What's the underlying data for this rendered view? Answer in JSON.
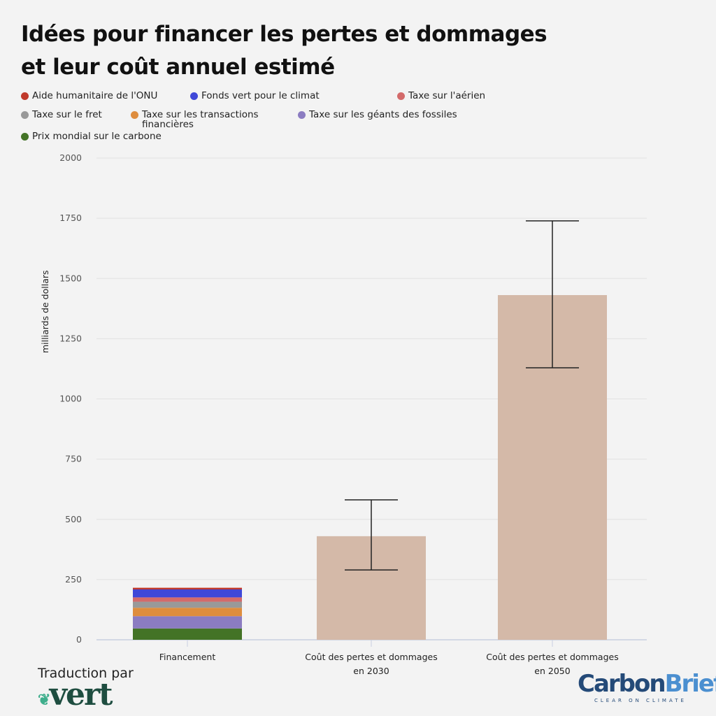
{
  "title_line1": "Idées pour financer les pertes et dommages",
  "title_line2": "et leur coût annuel estimé",
  "legend": [
    {
      "label": "Aide humanitaire de l'ONU",
      "color": "#c0392b"
    },
    {
      "label": "Fonds vert pour le climat",
      "color": "#3f48d8"
    },
    {
      "label": "Taxe sur l'aérien",
      "color": "#d36a6a"
    },
    {
      "label": "Taxe sur le fret",
      "color": "#999999"
    },
    {
      "label": "Taxe sur les transactions financières",
      "color": "#de8d3e"
    },
    {
      "label": "Taxe sur les géants des fossiles",
      "color": "#8b7cc1"
    },
    {
      "label": "Prix mondial sur le carbone",
      "color": "#437326"
    }
  ],
  "footer": {
    "translation": "Traduction par",
    "vert_logo": "vert",
    "cb_logo_1": "Carbon",
    "cb_logo_2": "Brief",
    "cb_tagline": "CLEAR ON CLIMATE"
  },
  "chart_data": {
    "type": "bar",
    "ylabel": "milliards de dollars",
    "ylim": [
      0,
      2000
    ],
    "yticks": [
      0,
      250,
      500,
      750,
      1000,
      1250,
      1500,
      1750,
      2000
    ],
    "categories": [
      "Financement",
      "Coût des pertes et dommages en 2030",
      "Coût des pertes et dommages en 2050"
    ],
    "stacked": [
      {
        "name": "Prix mondial sur le carbone",
        "value": 47
      },
      {
        "name": "Taxe sur les géants des fossiles",
        "value": 51
      },
      {
        "name": "Taxe sur les transactions financières",
        "value": 35
      },
      {
        "name": "Taxe sur le fret",
        "value": 25
      },
      {
        "name": "Taxe sur l'aérien",
        "value": 18
      },
      {
        "name": "Fonds vert pour le climat",
        "value": 33
      },
      {
        "name": "Aide humanitaire de l'ONU",
        "value": 7
      }
    ],
    "costs": [
      {
        "category": "Coût des pertes et dommages en 2030",
        "value": 430,
        "low": 290,
        "high": 581
      },
      {
        "category": "Coût des pertes et dommages en 2050",
        "value": 1431,
        "low": 1129,
        "high": 1739
      }
    ],
    "cost_color": "#d4b9a8"
  }
}
